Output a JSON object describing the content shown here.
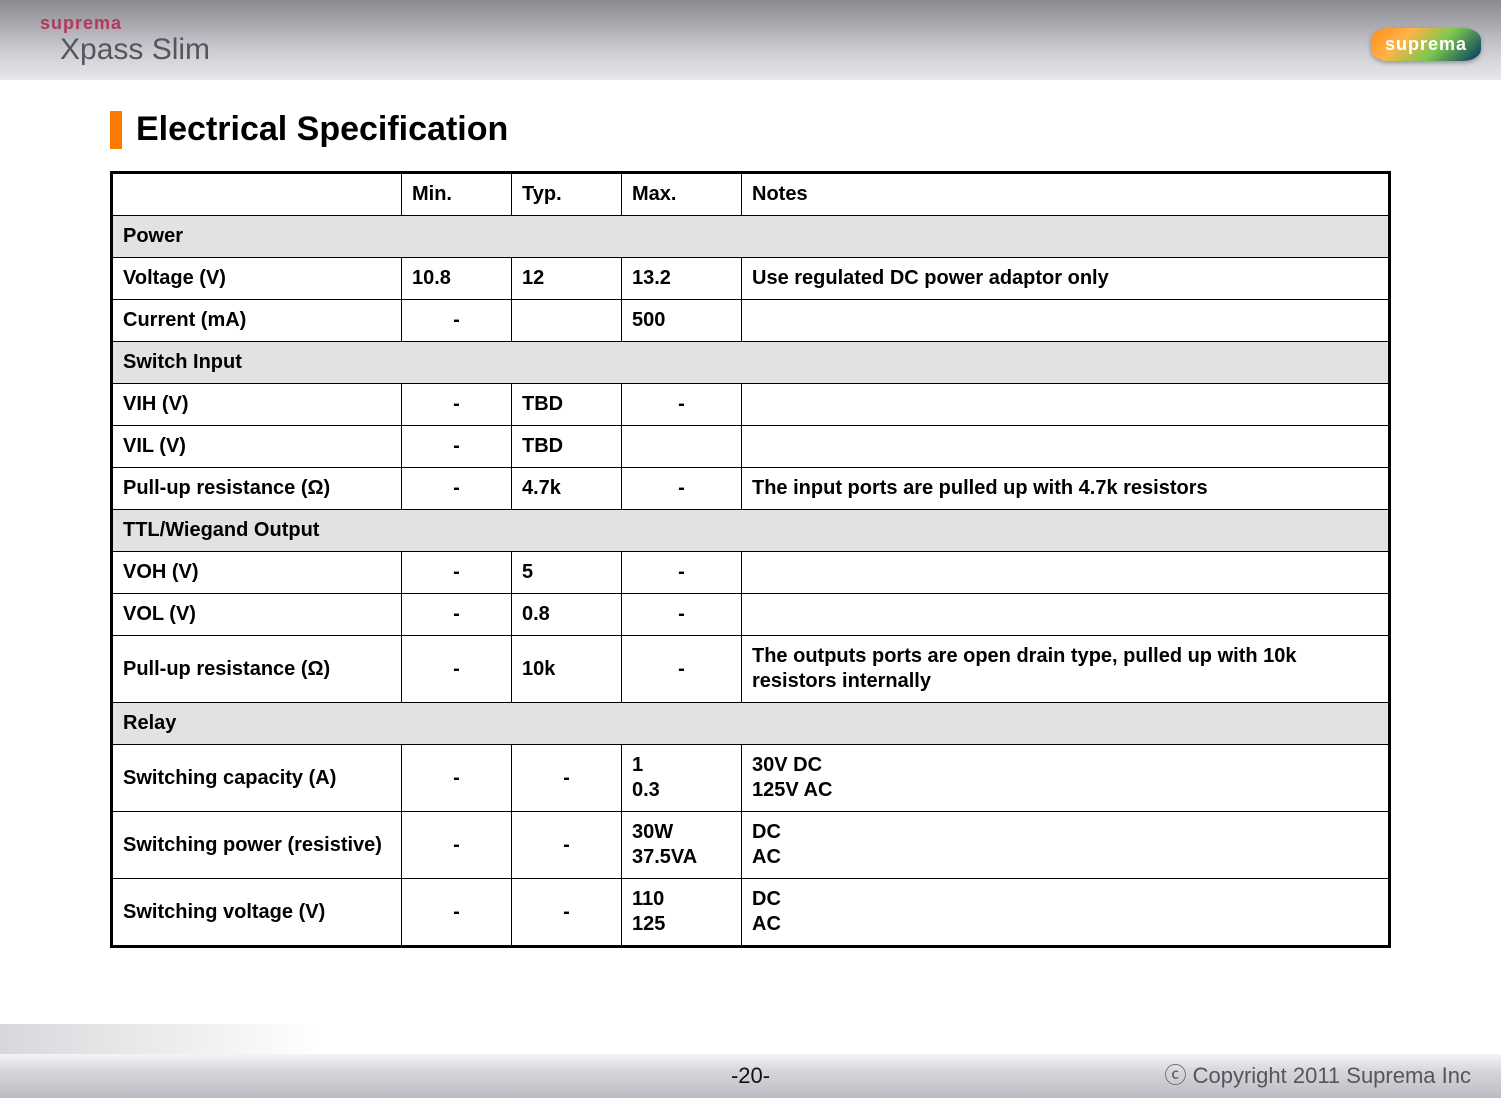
{
  "brand": {
    "top": "suprema",
    "bottom": "Xpass Slim",
    "badge": "suprema"
  },
  "title": "Electrical Specification",
  "table": {
    "headers": {
      "param": "",
      "min": "Min.",
      "typ": "Typ.",
      "max": "Max.",
      "notes": "Notes"
    },
    "sections": [
      {
        "name": "Power",
        "rows": [
          {
            "param": "Voltage (V)",
            "min": "10.8",
            "typ": "12",
            "max": "13.2",
            "notes": "Use regulated DC power adaptor only",
            "min_center": false
          },
          {
            "param": "Current (mA)",
            "min": "-",
            "typ": "",
            "max": "500",
            "notes": "",
            "min_center": true
          }
        ]
      },
      {
        "name": "Switch Input",
        "rows": [
          {
            "param": "VIH (V)",
            "min": "-",
            "typ": "TBD",
            "max": "-",
            "notes": "",
            "min_center": true,
            "max_center": true
          },
          {
            "param": "VIL (V)",
            "min": "-",
            "typ": "TBD",
            "max": "",
            "notes": "",
            "min_center": true
          },
          {
            "param": "Pull-up resistance (Ω)",
            "min": "-",
            "typ": "4.7k",
            "max": "-",
            "notes": "The input ports are pulled up with 4.7k resistors",
            "min_center": true,
            "max_center": true
          }
        ]
      },
      {
        "name": "TTL/Wiegand Output",
        "rows": [
          {
            "param": "VOH (V)",
            "min": "-",
            "typ": "5",
            "max": "-",
            "notes": "",
            "min_center": true,
            "max_center": true
          },
          {
            "param": "VOL (V)",
            "min": "-",
            "typ": "0.8",
            "max": "-",
            "notes": "",
            "min_center": true,
            "max_center": true
          },
          {
            "param": "Pull-up resistance (Ω)",
            "min": "-",
            "typ": "10k",
            "max": "-",
            "notes": "The outputs ports are open drain type, pulled up with 10k resistors internally",
            "min_center": true,
            "max_center": true
          }
        ]
      },
      {
        "name": "Relay",
        "rows": [
          {
            "param": "Switching capacity (A)",
            "min": "-",
            "typ": "-",
            "max": "1\n0.3",
            "notes": "30V DC\n125V AC",
            "min_center": true,
            "typ_center": true
          },
          {
            "param": "Switching power (resistive)",
            "min": "-",
            "typ": "-",
            "max": "30W\n37.5VA",
            "notes": "DC\nAC",
            "min_center": true,
            "typ_center": true
          },
          {
            "param": "Switching voltage (V)",
            "min": "-",
            "typ": "-",
            "max": "110\n125",
            "notes": "DC\nAC",
            "min_center": true,
            "typ_center": true
          }
        ]
      }
    ]
  },
  "footer": {
    "page": "-20-",
    "copyright": "ⓒ Copyright 2011 Suprema Inc"
  },
  "colors": {
    "accent": "#ff7a00",
    "section_bg": "#e2e2e2",
    "border": "#000000",
    "brand_red": "#b03a5a"
  }
}
